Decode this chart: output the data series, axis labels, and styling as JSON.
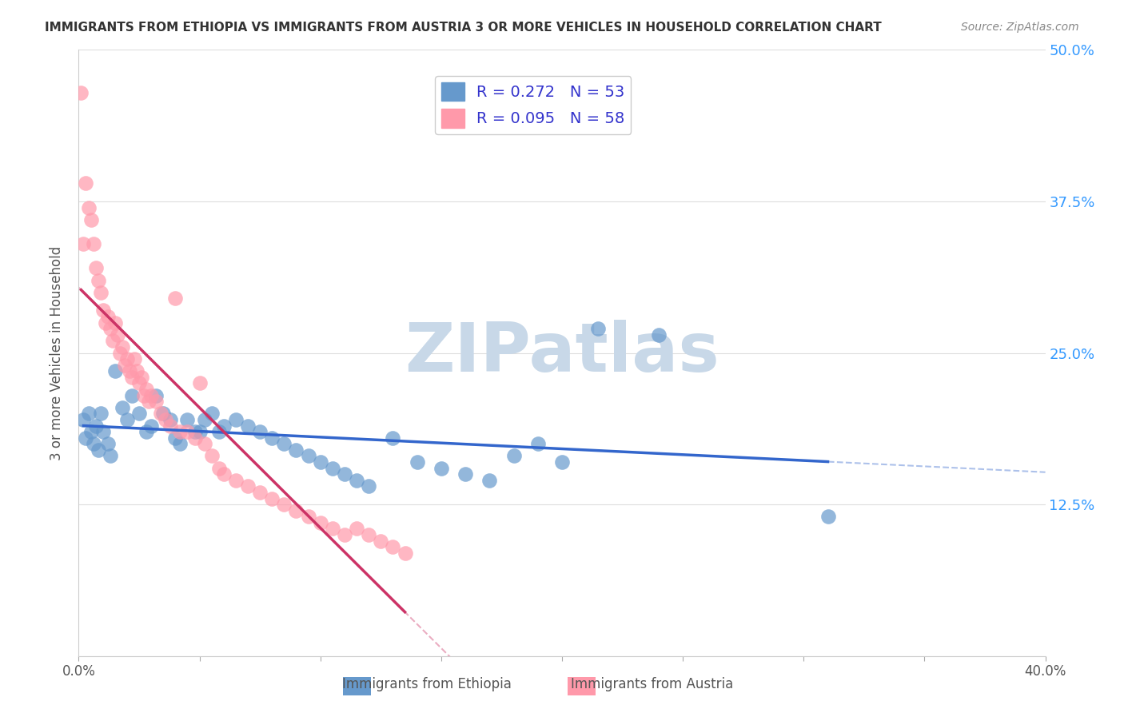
{
  "title": "IMMIGRANTS FROM ETHIOPIA VS IMMIGRANTS FROM AUSTRIA 3 OR MORE VEHICLES IN HOUSEHOLD CORRELATION CHART",
  "source": "Source: ZipAtlas.com",
  "xlabel_bottom": "",
  "ylabel": "3 or more Vehicles in Household",
  "xlim": [
    0.0,
    0.4
  ],
  "ylim": [
    0.0,
    0.5
  ],
  "xticks": [
    0.0,
    0.05,
    0.1,
    0.15,
    0.2,
    0.25,
    0.3,
    0.35,
    0.4
  ],
  "xticklabels": [
    "0.0%",
    "",
    "",
    "",
    "",
    "",
    "",
    "",
    "40.0%"
  ],
  "yticks": [
    0.0,
    0.125,
    0.25,
    0.375,
    0.5
  ],
  "yticklabels": [
    "",
    "12.5%",
    "25.0%",
    "37.5%",
    "50.0%"
  ],
  "legend1_R": "0.272",
  "legend1_N": "53",
  "legend2_R": "0.095",
  "legend2_N": "58",
  "legend1_label": "Immigrants from Ethiopia",
  "legend2_label": "Immigrants from Austria",
  "blue_color": "#6699cc",
  "pink_color": "#ff99aa",
  "blue_line_color": "#3366cc",
  "pink_line_color": "#cc3366",
  "watermark": "ZIPatlas",
  "watermark_color": "#c8d8e8",
  "ethiopia_x": [
    0.002,
    0.003,
    0.004,
    0.005,
    0.006,
    0.007,
    0.008,
    0.009,
    0.01,
    0.012,
    0.013,
    0.015,
    0.018,
    0.02,
    0.022,
    0.025,
    0.028,
    0.03,
    0.032,
    0.035,
    0.038,
    0.04,
    0.042,
    0.045,
    0.048,
    0.05,
    0.052,
    0.055,
    0.058,
    0.06,
    0.065,
    0.07,
    0.075,
    0.08,
    0.085,
    0.09,
    0.095,
    0.1,
    0.105,
    0.11,
    0.115,
    0.12,
    0.13,
    0.14,
    0.15,
    0.16,
    0.17,
    0.18,
    0.19,
    0.2,
    0.215,
    0.24,
    0.31
  ],
  "ethiopia_y": [
    0.195,
    0.18,
    0.2,
    0.185,
    0.175,
    0.19,
    0.17,
    0.2,
    0.185,
    0.175,
    0.165,
    0.235,
    0.205,
    0.195,
    0.215,
    0.2,
    0.185,
    0.19,
    0.215,
    0.2,
    0.195,
    0.18,
    0.175,
    0.195,
    0.185,
    0.185,
    0.195,
    0.2,
    0.185,
    0.19,
    0.195,
    0.19,
    0.185,
    0.18,
    0.175,
    0.17,
    0.165,
    0.16,
    0.155,
    0.15,
    0.145,
    0.14,
    0.18,
    0.16,
    0.155,
    0.15,
    0.145,
    0.165,
    0.175,
    0.16,
    0.27,
    0.265,
    0.115
  ],
  "austria_x": [
    0.001,
    0.002,
    0.003,
    0.004,
    0.005,
    0.006,
    0.007,
    0.008,
    0.009,
    0.01,
    0.011,
    0.012,
    0.013,
    0.014,
    0.015,
    0.016,
    0.017,
    0.018,
    0.019,
    0.02,
    0.021,
    0.022,
    0.023,
    0.024,
    0.025,
    0.026,
    0.027,
    0.028,
    0.029,
    0.03,
    0.032,
    0.034,
    0.036,
    0.038,
    0.04,
    0.042,
    0.045,
    0.048,
    0.05,
    0.052,
    0.055,
    0.058,
    0.06,
    0.065,
    0.07,
    0.075,
    0.08,
    0.085,
    0.09,
    0.095,
    0.1,
    0.105,
    0.11,
    0.115,
    0.12,
    0.125,
    0.13,
    0.135
  ],
  "austria_y": [
    0.465,
    0.34,
    0.39,
    0.37,
    0.36,
    0.34,
    0.32,
    0.31,
    0.3,
    0.285,
    0.275,
    0.28,
    0.27,
    0.26,
    0.275,
    0.265,
    0.25,
    0.255,
    0.24,
    0.245,
    0.235,
    0.23,
    0.245,
    0.235,
    0.225,
    0.23,
    0.215,
    0.22,
    0.21,
    0.215,
    0.21,
    0.2,
    0.195,
    0.19,
    0.295,
    0.185,
    0.185,
    0.18,
    0.225,
    0.175,
    0.165,
    0.155,
    0.15,
    0.145,
    0.14,
    0.135,
    0.13,
    0.125,
    0.12,
    0.115,
    0.11,
    0.105,
    0.1,
    0.105,
    0.1,
    0.095,
    0.09,
    0.085
  ]
}
